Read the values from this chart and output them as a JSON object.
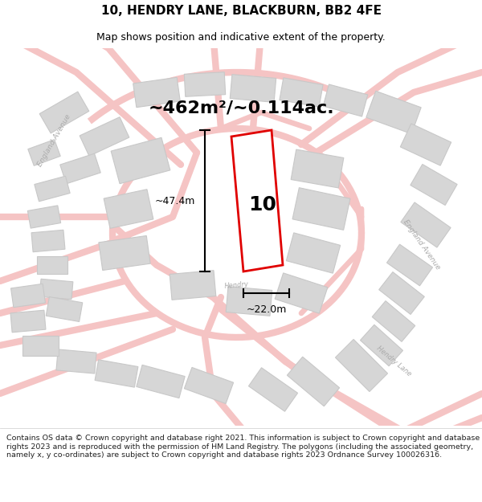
{
  "title": "10, HENDRY LANE, BLACKBURN, BB2 4FE",
  "subtitle": "Map shows position and indicative extent of the property.",
  "area_text": "~462m²/~0.114ac.",
  "number_label": "10",
  "dim_width": "~22.0m",
  "dim_height": "~47.4m",
  "footer_text": "Contains OS data © Crown copyright and database right 2021. This information is subject to Crown copyright and database rights 2023 and is reproduced with the permission of HM Land Registry. The polygons (including the associated geometry, namely x, y co-ordinates) are subject to Crown copyright and database rights 2023 Ordnance Survey 100026316.",
  "bg_color": "#ffffff",
  "map_bg": "#ffffff",
  "road_color": "#f5c4c4",
  "building_fill": "#d6d6d6",
  "building_stroke": "#c8c8c8",
  "plot_color": "#e00000",
  "plot_fill": "#ffffff",
  "dim_color": "#000000",
  "text_color": "#000000",
  "label_color": "#aaaaaa",
  "footer_color": "#222222",
  "title_fontsize": 11,
  "subtitle_fontsize": 9,
  "area_fontsize": 16,
  "number_fontsize": 18,
  "dim_fontsize": 9,
  "footer_fontsize": 6.8,
  "road_lw": 6,
  "plot_lw": 2.0
}
